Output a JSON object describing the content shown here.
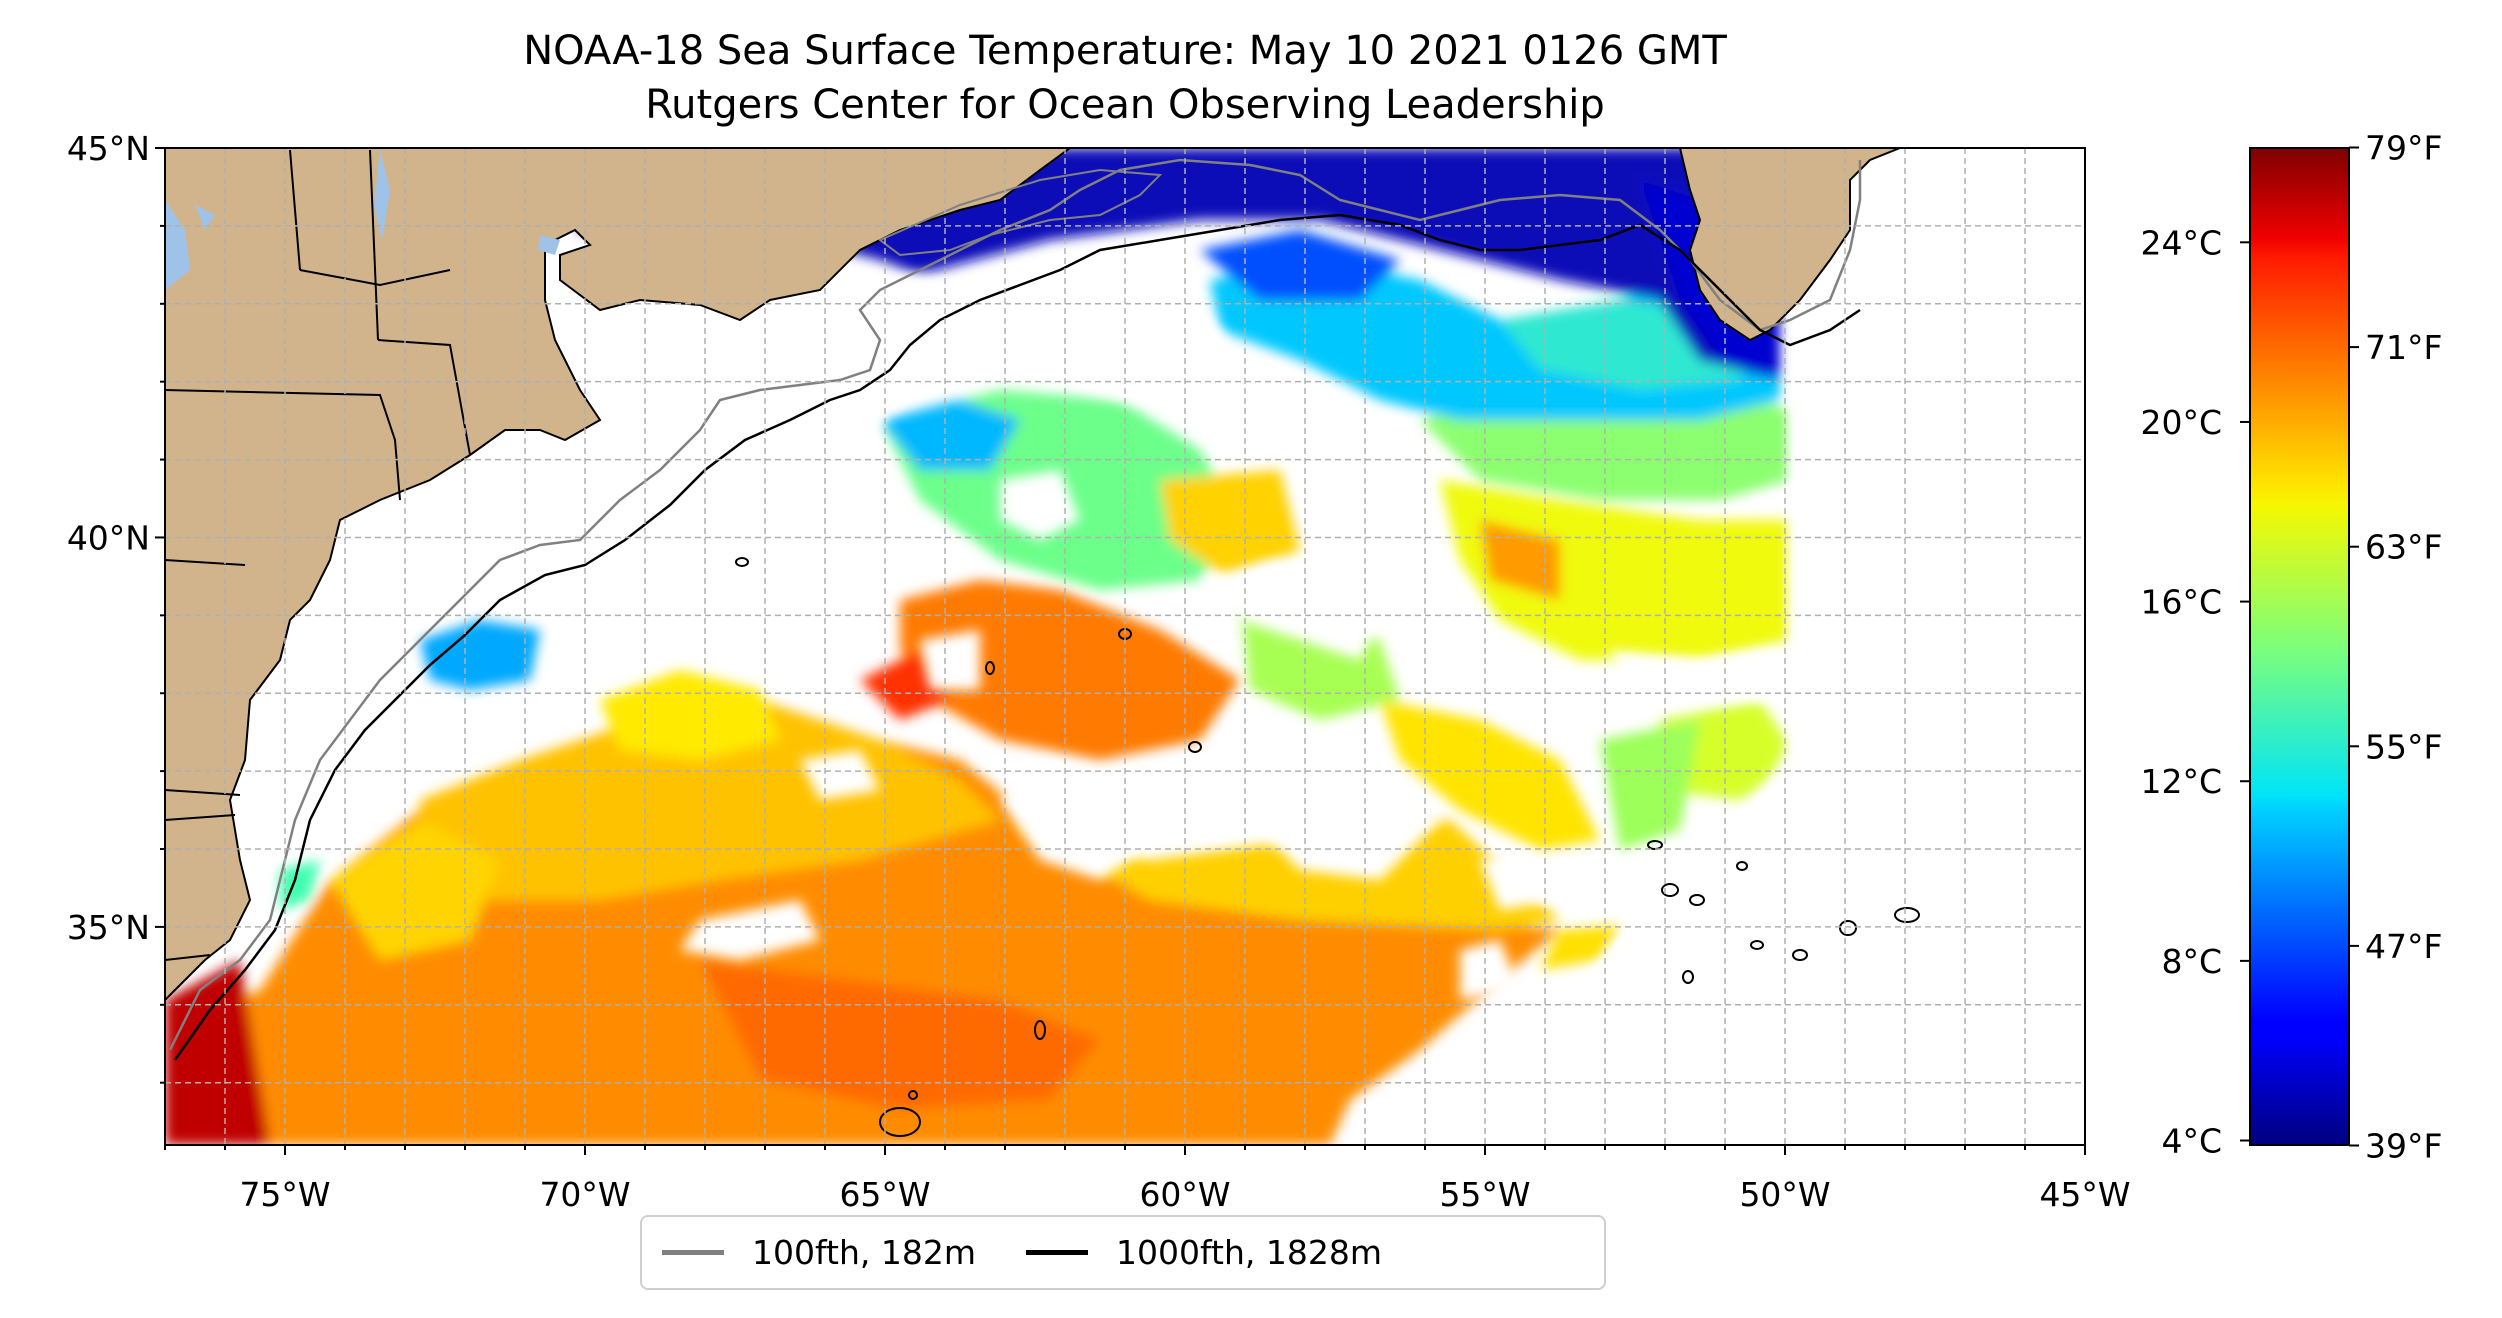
{
  "title": {
    "line1": "NOAA-18 Sea Surface Temperature: May 10 2021 0126 GMT",
    "line2": "Rutgers Center for Ocean Observing Leadership"
  },
  "map": {
    "lon_range": [
      -77,
      -45
    ],
    "lat_range": [
      32.2,
      45
    ],
    "lon_ticks": [
      {
        "value": -75,
        "label": "75°W"
      },
      {
        "value": -70,
        "label": "70°W"
      },
      {
        "value": -65,
        "label": "65°W"
      },
      {
        "value": -60,
        "label": "60°W"
      },
      {
        "value": -55,
        "label": "55°W"
      },
      {
        "value": -50,
        "label": "50°W"
      },
      {
        "value": -45,
        "label": "45°W"
      }
    ],
    "lat_ticks": [
      {
        "value": 35,
        "label": "35°N"
      },
      {
        "value": 40,
        "label": "40°N"
      },
      {
        "value": 45,
        "label": "45°N"
      }
    ],
    "gridlines": true,
    "colors": {
      "land": "#d2b48c",
      "lakes": "#9fc3e8",
      "contour_100fth": "#808080",
      "contour_1000fth": "#000000",
      "no_data": "#ffffff"
    }
  },
  "colorbar": {
    "colormap": "jet",
    "celsius_range": [
      3.9,
      26.1
    ],
    "celsius_ticks": [
      {
        "value": 4,
        "label": "4°C"
      },
      {
        "value": 8,
        "label": "8°C"
      },
      {
        "value": 12,
        "label": "12°C"
      },
      {
        "value": 16,
        "label": "16°C"
      },
      {
        "value": 20,
        "label": "20°C"
      },
      {
        "value": 24,
        "label": "24°C"
      }
    ],
    "fahrenheit_ticks": [
      {
        "value": 39,
        "label": "39°F"
      },
      {
        "value": 47,
        "label": "47°F"
      },
      {
        "value": 55,
        "label": "55°F"
      },
      {
        "value": 63,
        "label": "63°F"
      },
      {
        "value": 71,
        "label": "71°F"
      },
      {
        "value": 79,
        "label": "79°F"
      }
    ]
  },
  "legend": {
    "placement": "bottom-center",
    "items": [
      {
        "label": "100fth, 182m",
        "color": "#808080"
      },
      {
        "label": "1000fth, 1828m",
        "color": "#000000"
      }
    ]
  }
}
